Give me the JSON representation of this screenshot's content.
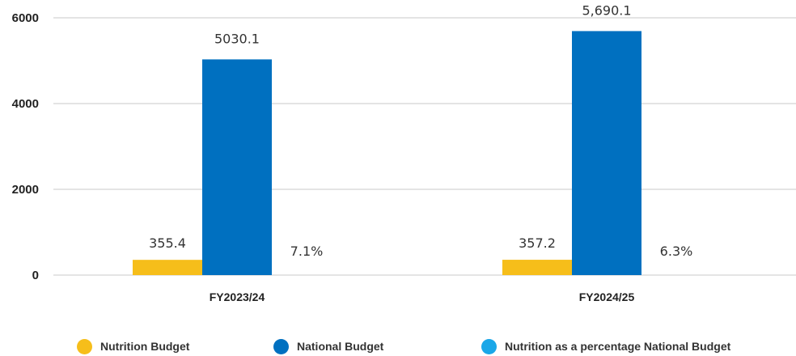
{
  "chart_data": {
    "type": "bar",
    "categories": [
      "FY2023/24",
      "FY2024/25"
    ],
    "series": [
      {
        "name": "Nutrition Budget",
        "values": [
          355.4,
          357.2
        ],
        "labels": [
          "355.4",
          "357.2"
        ],
        "color": "#F6BE1A"
      },
      {
        "name": "National Budget",
        "values": [
          5030.1,
          5690.1
        ],
        "labels": [
          "5030.1",
          "5,690.1"
        ],
        "color": "#0070C0"
      },
      {
        "name": "Nutrition as a percentage National Budget",
        "values": [
          7.1,
          6.3
        ],
        "labels": [
          "7.1%",
          "6.3%"
        ],
        "color": "#1AA7E8"
      }
    ],
    "yticks": [
      "0",
      "2000",
      "4000",
      "6000"
    ],
    "ylim": [
      0,
      6000
    ],
    "grid": true,
    "legend_position": "bottom",
    "title": "",
    "xlabel": "",
    "ylabel": ""
  }
}
